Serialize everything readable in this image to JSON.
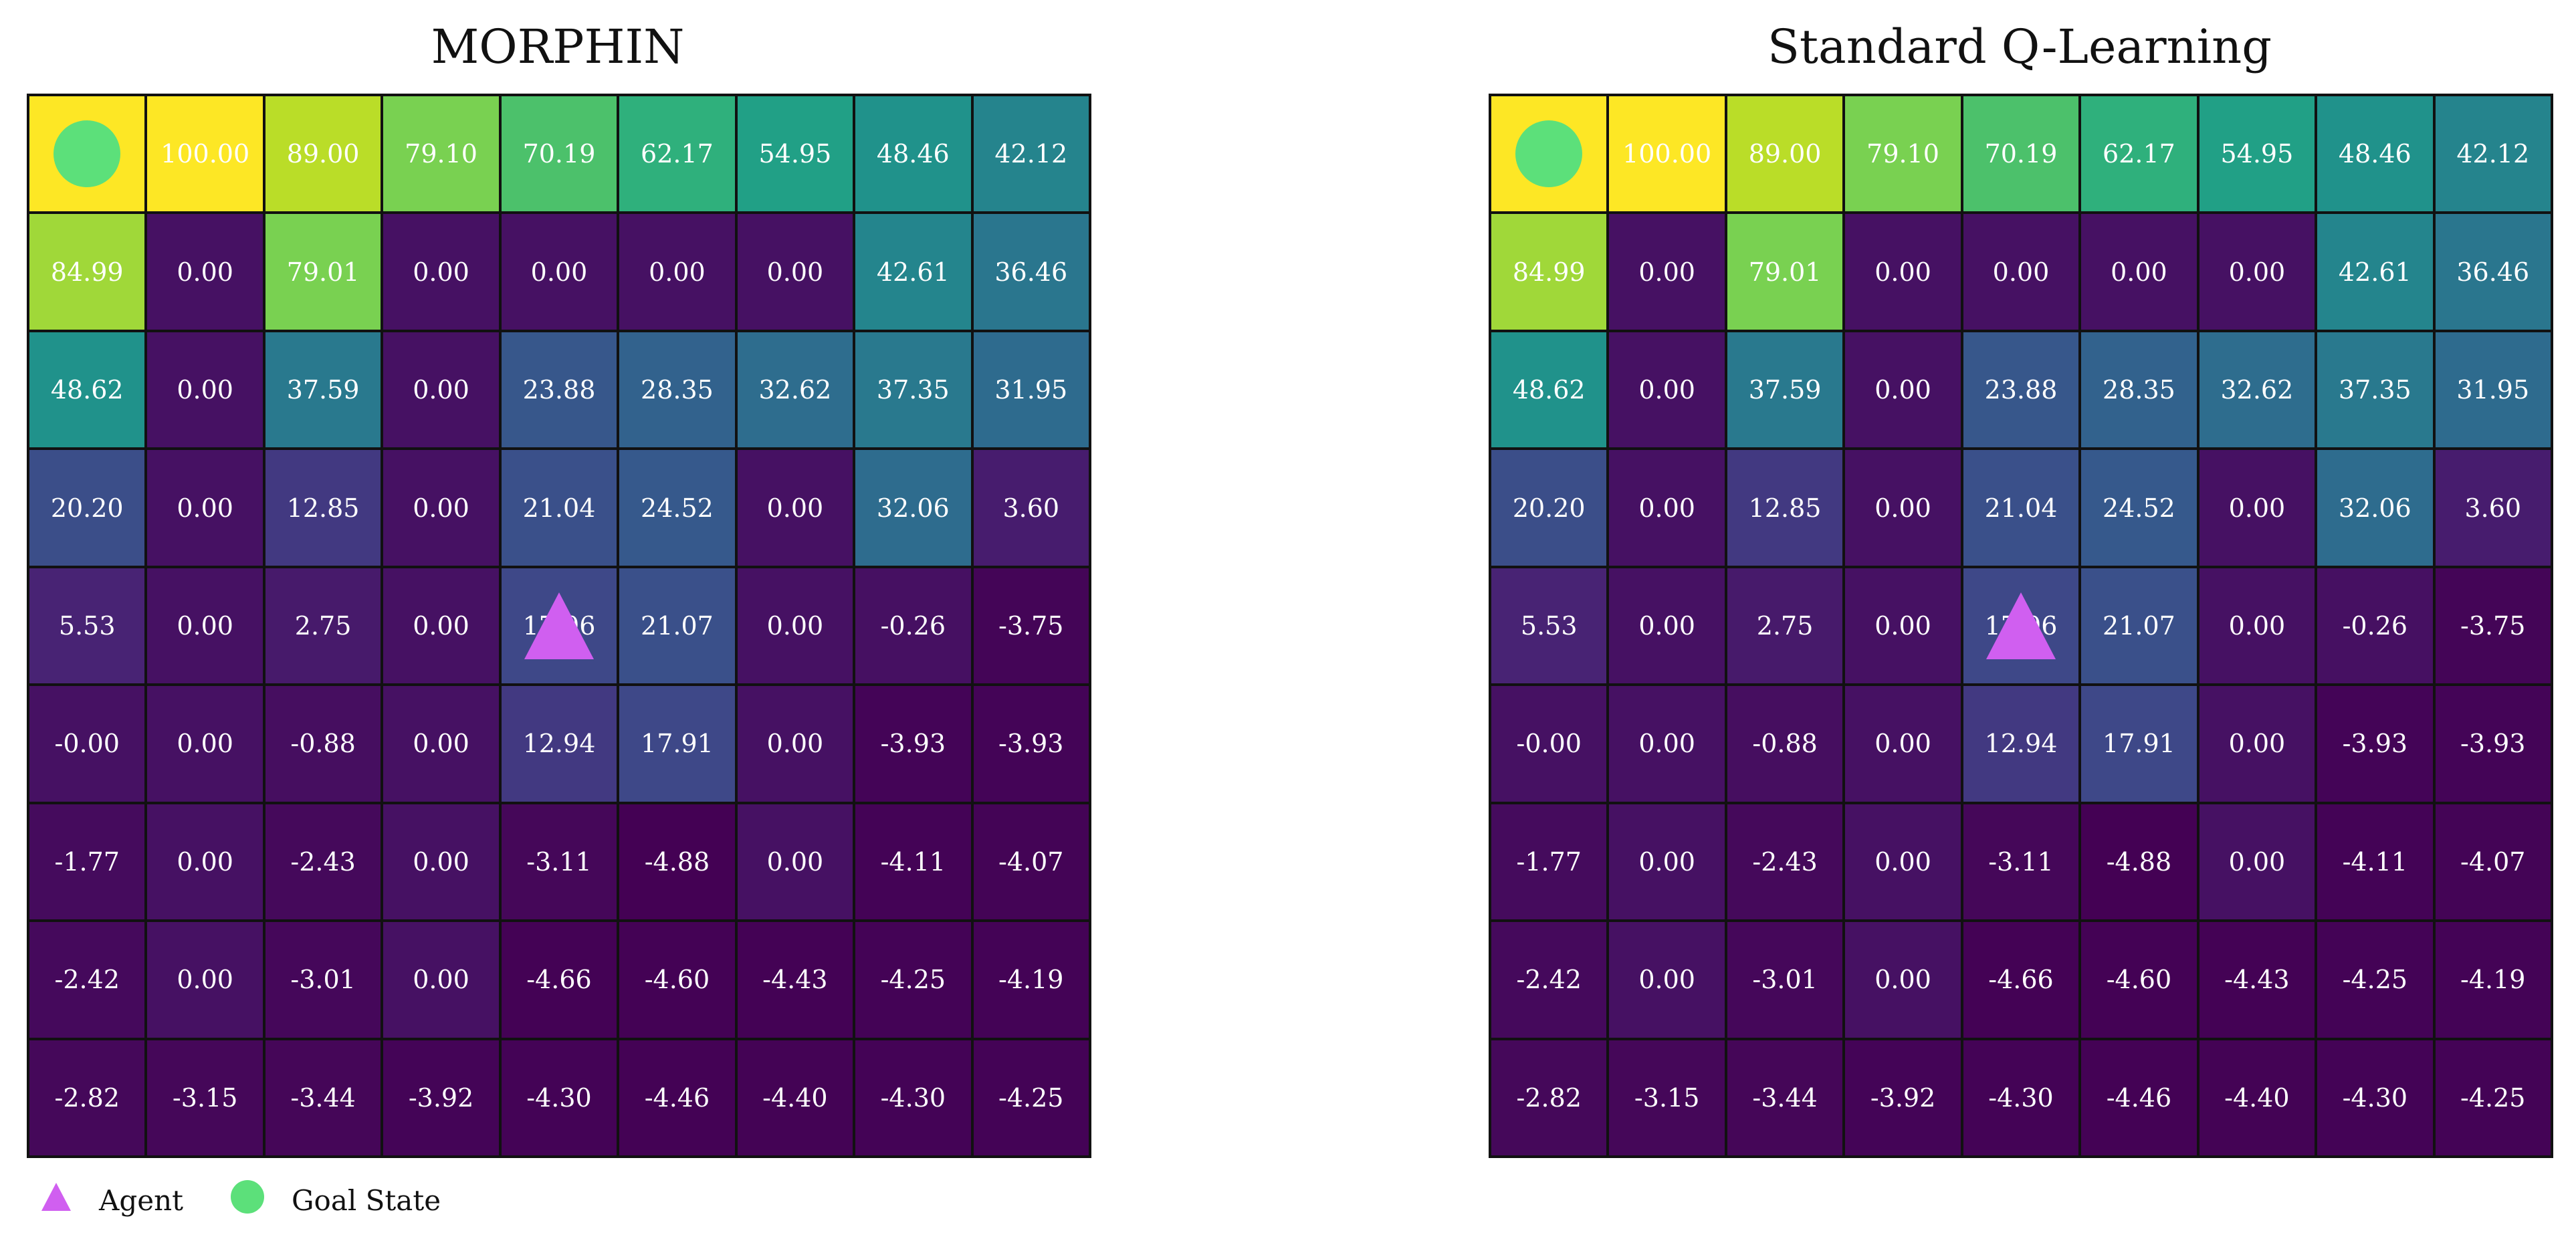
{
  "chart_data": [
    {
      "type": "heatmap",
      "title": "MORPHIN",
      "rows": 9,
      "cols": 9,
      "values": [
        [
          null,
          100.0,
          89.0,
          79.1,
          70.19,
          62.17,
          54.95,
          48.46,
          42.12
        ],
        [
          84.99,
          0.0,
          79.01,
          0.0,
          0.0,
          0.0,
          0.0,
          42.61,
          36.46
        ],
        [
          48.62,
          0.0,
          37.59,
          0.0,
          23.88,
          28.35,
          32.62,
          37.35,
          31.95
        ],
        [
          20.2,
          0.0,
          12.85,
          0.0,
          21.04,
          24.52,
          0.0,
          32.06,
          3.6
        ],
        [
          5.53,
          0.0,
          2.75,
          0.0,
          17.96,
          21.07,
          0.0,
          -0.26,
          -3.75
        ],
        [
          -0.0,
          0.0,
          -0.88,
          0.0,
          12.94,
          17.91,
          0.0,
          -3.93,
          -3.93
        ],
        [
          -1.77,
          0.0,
          -2.43,
          0.0,
          -3.11,
          -4.88,
          0.0,
          -4.11,
          -4.07
        ],
        [
          -2.42,
          0.0,
          -3.01,
          0.0,
          -4.66,
          -4.6,
          -4.43,
          -4.25,
          -4.19
        ],
        [
          -2.82,
          -3.15,
          -3.44,
          -3.92,
          -4.3,
          -4.46,
          -4.4,
          -4.3,
          -4.25
        ]
      ],
      "labels": [
        [
          "",
          "100.00",
          "89.00",
          "79.10",
          "70.19",
          "62.17",
          "54.95",
          "48.46",
          "42.12"
        ],
        [
          "84.99",
          "0.00",
          "79.01",
          "0.00",
          "0.00",
          "0.00",
          "0.00",
          "42.61",
          "36.46"
        ],
        [
          "48.62",
          "0.00",
          "37.59",
          "0.00",
          "23.88",
          "28.35",
          "32.62",
          "37.35",
          "31.95"
        ],
        [
          "20.20",
          "0.00",
          "12.85",
          "0.00",
          "21.04",
          "24.52",
          "0.00",
          "32.06",
          "3.60"
        ],
        [
          "5.53",
          "0.00",
          "2.75",
          "0.00",
          "17.96",
          "21.07",
          "0.00",
          "-0.26",
          "-3.75"
        ],
        [
          "-0.00",
          "0.00",
          "-0.88",
          "0.00",
          "12.94",
          "17.91",
          "0.00",
          "-3.93",
          "-3.93"
        ],
        [
          "-1.77",
          "0.00",
          "-2.43",
          "0.00",
          "-3.11",
          "-4.88",
          "0.00",
          "-4.11",
          "-4.07"
        ],
        [
          "-2.42",
          "0.00",
          "-3.01",
          "0.00",
          "-4.66",
          "-4.60",
          "-4.43",
          "-4.25",
          "-4.19"
        ],
        [
          "-2.82",
          "-3.15",
          "-3.44",
          "-3.92",
          "-4.30",
          "-4.46",
          "-4.40",
          "-4.30",
          "-4.25"
        ]
      ],
      "goal_cell": [
        0,
        0
      ],
      "agent_cell": [
        4,
        4
      ],
      "colormap": "viridis",
      "vmin": -4.88,
      "vmax": 100.0
    },
    {
      "type": "heatmap",
      "title": "Standard Q-Learning",
      "rows": 9,
      "cols": 9,
      "values": [
        [
          null,
          100.0,
          89.0,
          79.1,
          70.19,
          62.17,
          54.95,
          48.46,
          42.12
        ],
        [
          84.99,
          0.0,
          79.01,
          0.0,
          0.0,
          0.0,
          0.0,
          42.61,
          36.46
        ],
        [
          48.62,
          0.0,
          37.59,
          0.0,
          23.88,
          28.35,
          32.62,
          37.35,
          31.95
        ],
        [
          20.2,
          0.0,
          12.85,
          0.0,
          21.04,
          24.52,
          0.0,
          32.06,
          3.6
        ],
        [
          5.53,
          0.0,
          2.75,
          0.0,
          17.96,
          21.07,
          0.0,
          -0.26,
          -3.75
        ],
        [
          -0.0,
          0.0,
          -0.88,
          0.0,
          12.94,
          17.91,
          0.0,
          -3.93,
          -3.93
        ],
        [
          -1.77,
          0.0,
          -2.43,
          0.0,
          -3.11,
          -4.88,
          0.0,
          -4.11,
          -4.07
        ],
        [
          -2.42,
          0.0,
          -3.01,
          0.0,
          -4.66,
          -4.6,
          -4.43,
          -4.25,
          -4.19
        ],
        [
          -2.82,
          -3.15,
          -3.44,
          -3.92,
          -4.3,
          -4.46,
          -4.4,
          -4.3,
          -4.25
        ]
      ],
      "labels": [
        [
          "",
          "100.00",
          "89.00",
          "79.10",
          "70.19",
          "62.17",
          "54.95",
          "48.46",
          "42.12"
        ],
        [
          "84.99",
          "0.00",
          "79.01",
          "0.00",
          "0.00",
          "0.00",
          "0.00",
          "42.61",
          "36.46"
        ],
        [
          "48.62",
          "0.00",
          "37.59",
          "0.00",
          "23.88",
          "28.35",
          "32.62",
          "37.35",
          "31.95"
        ],
        [
          "20.20",
          "0.00",
          "12.85",
          "0.00",
          "21.04",
          "24.52",
          "0.00",
          "32.06",
          "3.60"
        ],
        [
          "5.53",
          "0.00",
          "2.75",
          "0.00",
          "17.96",
          "21.07",
          "0.00",
          "-0.26",
          "-3.75"
        ],
        [
          "-0.00",
          "0.00",
          "-0.88",
          "0.00",
          "12.94",
          "17.91",
          "0.00",
          "-3.93",
          "-3.93"
        ],
        [
          "-1.77",
          "0.00",
          "-2.43",
          "0.00",
          "-3.11",
          "-4.88",
          "0.00",
          "-4.11",
          "-4.07"
        ],
        [
          "-2.42",
          "0.00",
          "-3.01",
          "0.00",
          "-4.66",
          "-4.60",
          "-4.43",
          "-4.25",
          "-4.19"
        ],
        [
          "-2.82",
          "-3.15",
          "-3.44",
          "-3.92",
          "-4.30",
          "-4.46",
          "-4.40",
          "-4.30",
          "-4.25"
        ]
      ],
      "goal_cell": [
        0,
        0
      ],
      "agent_cell": [
        4,
        4
      ],
      "colormap": "viridis",
      "vmin": -4.88,
      "vmax": 100.0
    }
  ],
  "legend": {
    "agent_label": "Agent",
    "goal_label": "Goal State"
  },
  "colors": {
    "agent": "#d05ff0",
    "goal": "#5ce07a",
    "goal_cell": "#fde725",
    "grid_line": "#111111",
    "cell_text": "#ffffff"
  },
  "icons": {
    "agent": "triangle-icon",
    "goal": "circle-icon"
  }
}
